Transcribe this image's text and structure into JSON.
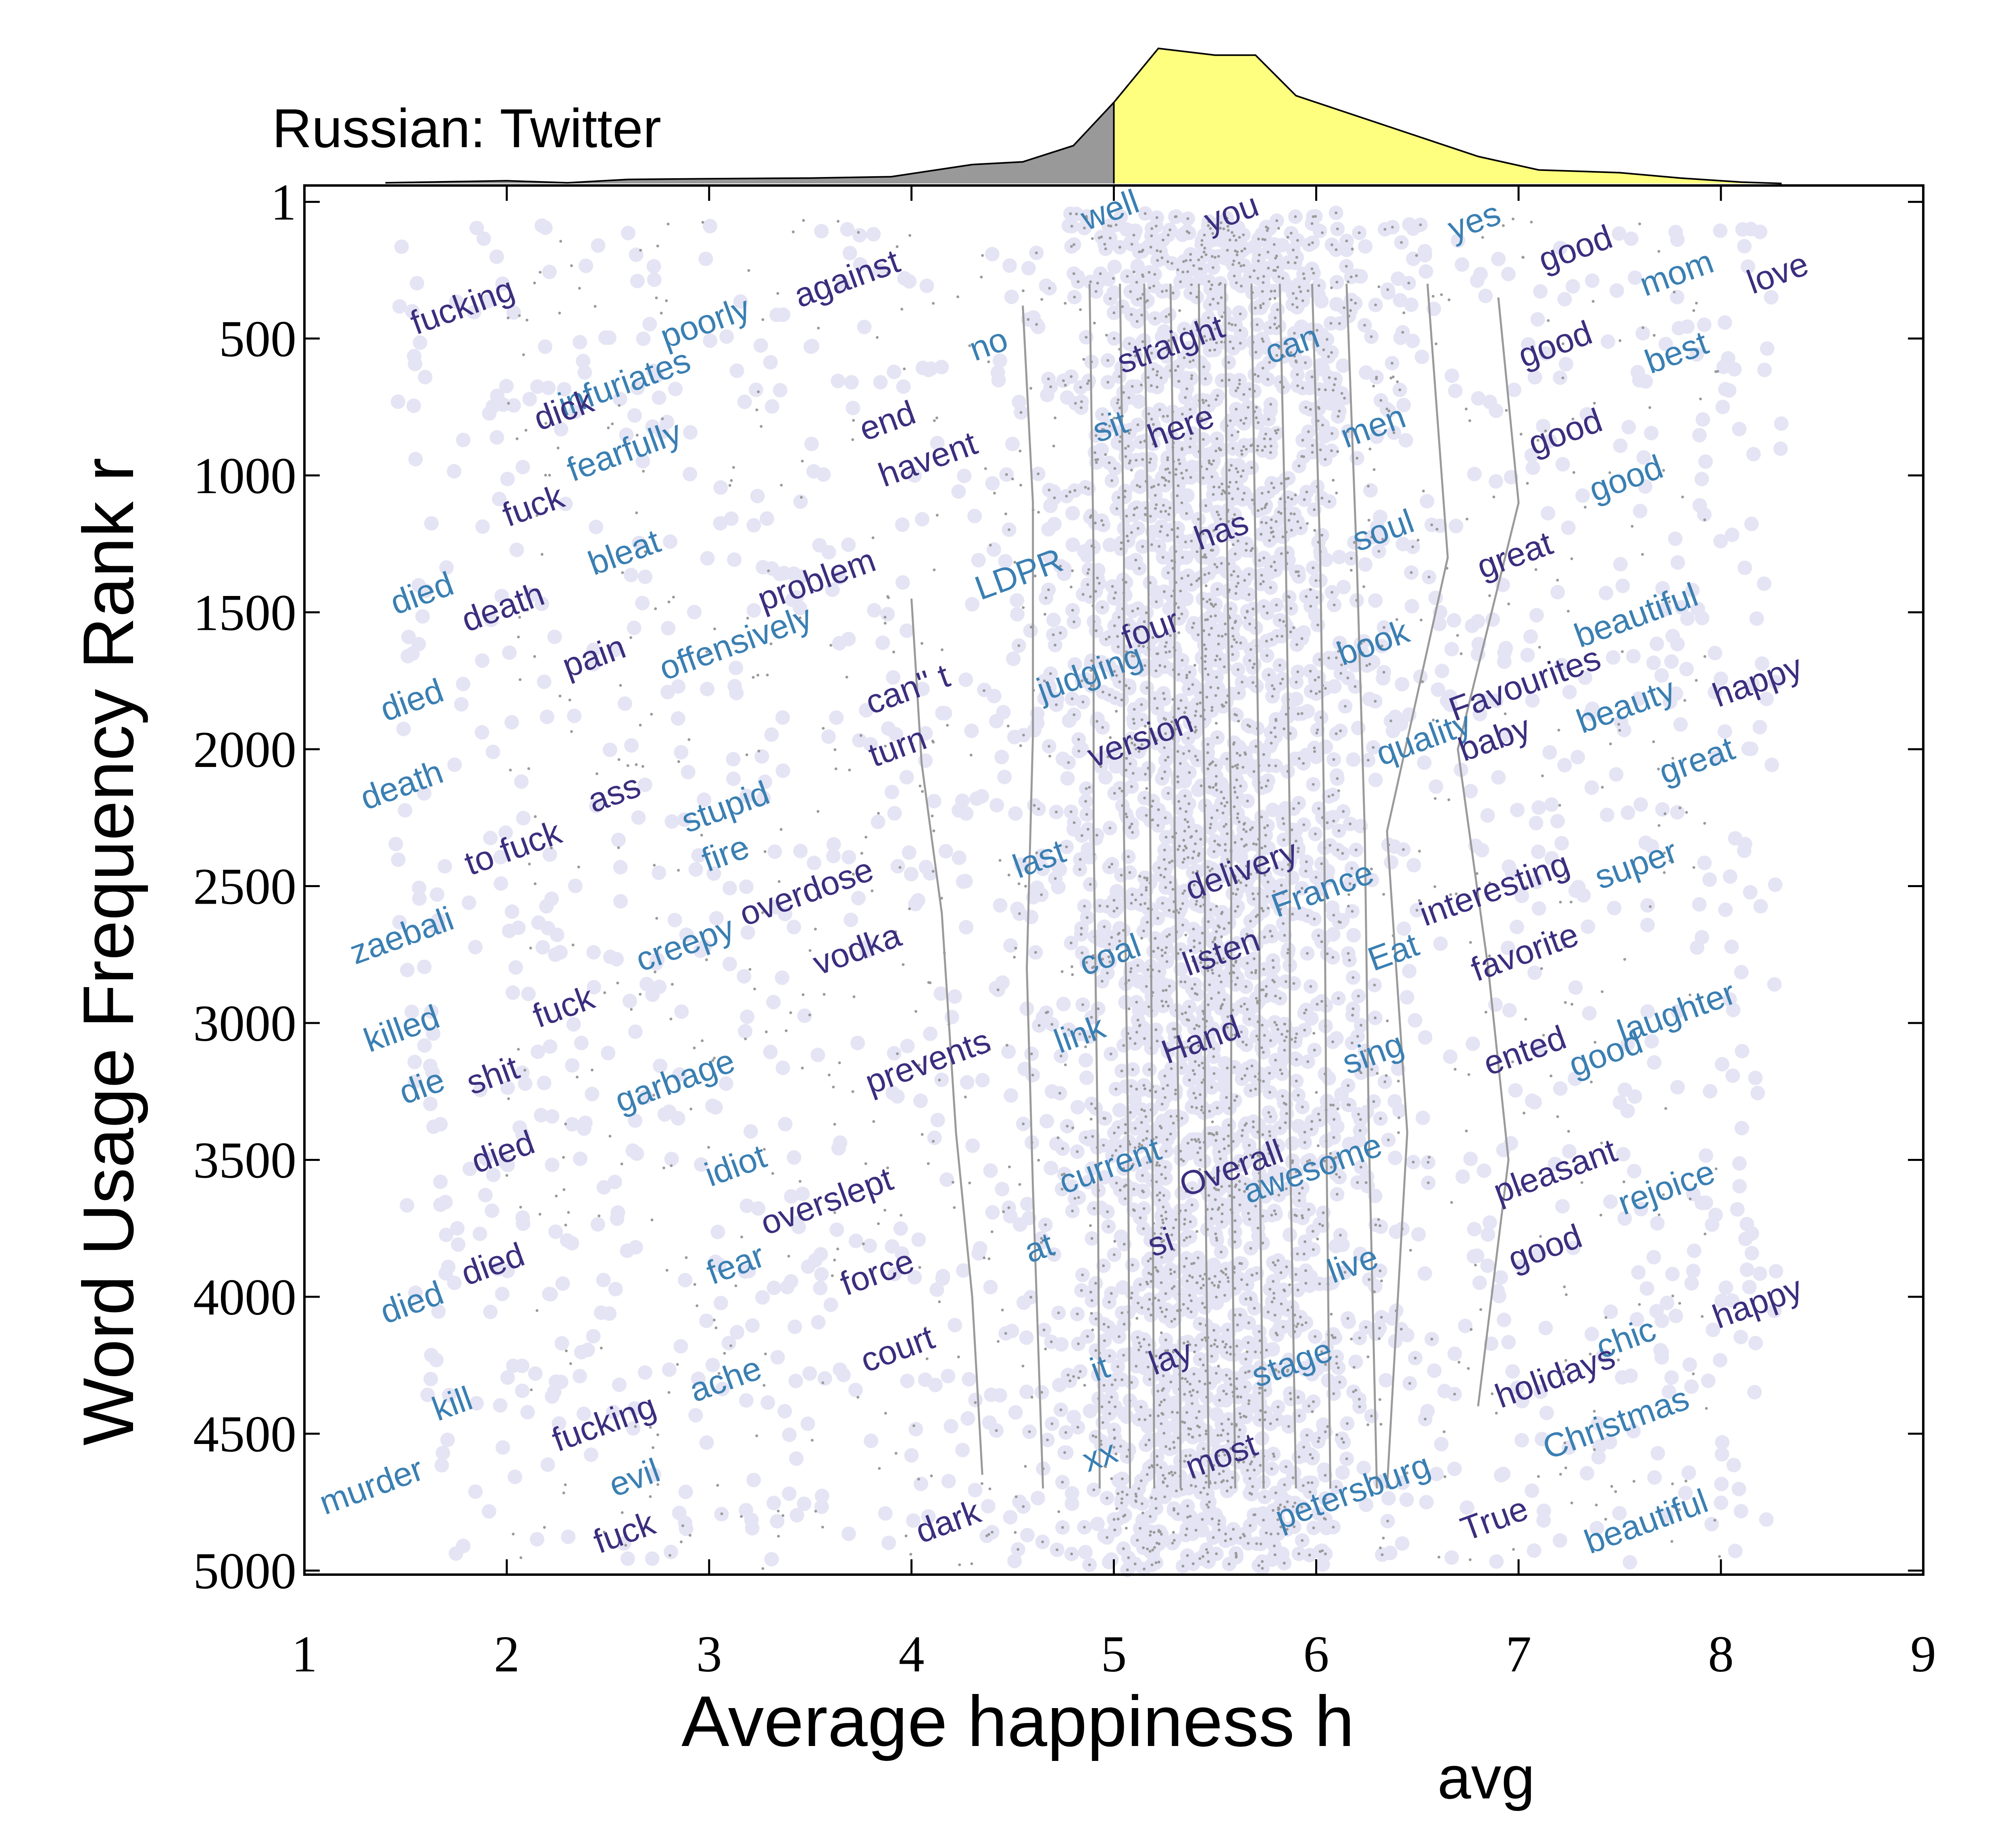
{
  "chart_data": {
    "type": "scatter",
    "title": "Russian: Twitter",
    "xlabel_main": "Average happiness h",
    "xlabel_sub": "avg",
    "ylabel": "Word Usage Frequency Rank r",
    "xlim": [
      1,
      9
    ],
    "ylim": [
      0,
      5000
    ],
    "y_inverted": true,
    "grid": false,
    "x_ticks": [
      1,
      2,
      3,
      4,
      5,
      6,
      7,
      8,
      9
    ],
    "y_ticks": [
      1,
      500,
      1000,
      1500,
      2000,
      2500,
      3000,
      3500,
      4000,
      4500,
      5000
    ],
    "colors": {
      "dark_word": "#3b2e7e",
      "light_word": "#3a7fb2",
      "scatter_halo": "#e4e4f4",
      "scatter_dot": "#9a9a9a",
      "contour": "#9a9a9a",
      "hist_below": "#999999",
      "hist_above": "#ffff7f",
      "axis": "#000000"
    },
    "distribution": {
      "split_at": 5.0,
      "x": [
        1.4,
        2.0,
        2.3,
        2.6,
        3.0,
        3.5,
        3.9,
        4.3,
        4.55,
        4.8,
        5.0,
        5.22,
        5.5,
        5.7,
        5.9,
        6.2,
        6.5,
        6.8,
        7.1,
        7.5,
        7.8,
        8.1,
        8.3
      ],
      "y": [
        0.005,
        0.02,
        0.005,
        0.03,
        0.035,
        0.04,
        0.05,
        0.14,
        0.16,
        0.28,
        0.6,
        1.0,
        0.95,
        0.95,
        0.65,
        0.5,
        0.35,
        0.2,
        0.1,
        0.08,
        0.04,
        0.01,
        0.0
      ]
    },
    "contours": [
      {
        "h": [
          4.0,
          4.05,
          4.15,
          4.22,
          4.3,
          4.35
        ],
        "r": [
          1450,
          2050,
          2600,
          3400,
          4000,
          4650
        ]
      },
      {
        "h": [
          4.55,
          4.6,
          4.6,
          4.57,
          4.6,
          4.65
        ],
        "r": [
          380,
          1100,
          1950,
          2800,
          3600,
          4700
        ]
      },
      {
        "h": [
          4.88,
          4.9,
          4.9,
          4.92,
          4.93
        ],
        "r": [
          300,
          1300,
          2300,
          3400,
          4700
        ]
      },
      {
        "h": [
          5.03,
          5.05,
          5.05,
          5.07,
          5.08
        ],
        "r": [
          300,
          1300,
          2300,
          3400,
          4700
        ]
      },
      {
        "h": [
          5.15,
          5.17,
          5.18,
          5.19,
          5.2
        ],
        "r": [
          300,
          1300,
          2300,
          3400,
          4700
        ]
      },
      {
        "h": [
          5.28,
          5.3,
          5.3,
          5.32,
          5.33
        ],
        "r": [
          300,
          1300,
          2300,
          3400,
          4700
        ]
      },
      {
        "h": [
          5.42,
          5.43,
          5.45,
          5.45,
          5.47
        ],
        "r": [
          300,
          1300,
          2300,
          3400,
          4700
        ]
      },
      {
        "h": [
          5.55,
          5.56,
          5.58,
          5.58,
          5.6
        ],
        "r": [
          300,
          1300,
          2300,
          3400,
          4700
        ]
      },
      {
        "h": [
          5.68,
          5.7,
          5.72,
          5.72,
          5.74
        ],
        "r": [
          300,
          1300,
          2300,
          3400,
          4700
        ]
      },
      {
        "h": [
          5.82,
          5.85,
          5.87,
          5.87,
          5.9
        ],
        "r": [
          300,
          1300,
          2300,
          3400,
          4700
        ]
      },
      {
        "h": [
          5.98,
          6.02,
          6.04,
          6.05,
          6.07
        ],
        "r": [
          300,
          1300,
          2300,
          3400,
          4700
        ]
      },
      {
        "h": [
          6.15,
          6.2,
          6.24,
          6.26,
          6.3
        ],
        "r": [
          300,
          1300,
          2300,
          3400,
          4700
        ]
      },
      {
        "h": [
          6.55,
          6.65,
          6.35,
          6.45,
          6.35
        ],
        "r": [
          300,
          1300,
          2300,
          3400,
          4700
        ]
      },
      {
        "h": [
          6.9,
          7.0,
          6.7,
          6.85,
          6.95,
          6.8
        ],
        "r": [
          350,
          1100,
          2000,
          2800,
          3500,
          4400
        ]
      }
    ],
    "words": [
      {
        "w": "fucking",
        "h": 1.8,
        "r": 420,
        "s": "d"
      },
      {
        "w": "poorly",
        "h": 3.0,
        "r": 480,
        "s": "l"
      },
      {
        "w": "against",
        "h": 3.7,
        "r": 320,
        "s": "d"
      },
      {
        "w": "well",
        "h": 5.0,
        "r": 70,
        "s": "l"
      },
      {
        "w": "you",
        "h": 5.6,
        "r": 80,
        "s": "d"
      },
      {
        "w": "yes",
        "h": 6.8,
        "r": 110,
        "s": "l"
      },
      {
        "w": "good",
        "h": 7.3,
        "r": 210,
        "s": "d"
      },
      {
        "w": "mom",
        "h": 7.8,
        "r": 300,
        "s": "l"
      },
      {
        "w": "love",
        "h": 8.3,
        "r": 300,
        "s": "d"
      },
      {
        "w": "infuriates",
        "h": 2.6,
        "r": 700,
        "s": "l"
      },
      {
        "w": "no",
        "h": 4.4,
        "r": 560,
        "s": "l"
      },
      {
        "w": "straight",
        "h": 5.3,
        "r": 560,
        "s": "d"
      },
      {
        "w": "can",
        "h": 5.9,
        "r": 560,
        "s": "l"
      },
      {
        "w": "good",
        "h": 7.2,
        "r": 560,
        "s": "d"
      },
      {
        "w": "best",
        "h": 7.8,
        "r": 590,
        "s": "l"
      },
      {
        "w": "dick",
        "h": 2.3,
        "r": 800,
        "s": "d"
      },
      {
        "w": "fearfully",
        "h": 2.6,
        "r": 950,
        "s": "l"
      },
      {
        "w": "end",
        "h": 3.9,
        "r": 840,
        "s": "d"
      },
      {
        "w": "havent",
        "h": 4.1,
        "r": 980,
        "s": "d"
      },
      {
        "w": "sit",
        "h": 5.0,
        "r": 860,
        "s": "l"
      },
      {
        "w": "here",
        "h": 5.35,
        "r": 860,
        "s": "d"
      },
      {
        "w": "men",
        "h": 6.3,
        "r": 860,
        "s": "l"
      },
      {
        "w": "good",
        "h": 7.25,
        "r": 880,
        "s": "d"
      },
      {
        "w": "good",
        "h": 7.55,
        "r": 1050,
        "s": "l"
      },
      {
        "w": "fuck",
        "h": 2.15,
        "r": 1150,
        "s": "d"
      },
      {
        "w": "bleat",
        "h": 2.6,
        "r": 1320,
        "s": "l"
      },
      {
        "w": "LDPR",
        "h": 4.55,
        "r": 1400,
        "s": "l"
      },
      {
        "w": "has",
        "h": 5.55,
        "r": 1240,
        "s": "d"
      },
      {
        "w": "soul",
        "h": 6.35,
        "r": 1240,
        "s": "l"
      },
      {
        "w": "great",
        "h": 7.0,
        "r": 1330,
        "s": "d"
      },
      {
        "w": "died",
        "h": 1.6,
        "r": 1470,
        "s": "l"
      },
      {
        "w": "death",
        "h": 2.0,
        "r": 1520,
        "s": "d"
      },
      {
        "w": "problem",
        "h": 3.55,
        "r": 1420,
        "s": "d"
      },
      {
        "w": "pain",
        "h": 2.45,
        "r": 1700,
        "s": "d"
      },
      {
        "w": "offensively",
        "h": 3.15,
        "r": 1650,
        "s": "l"
      },
      {
        "w": "four",
        "h": 5.2,
        "r": 1600,
        "s": "d"
      },
      {
        "w": "book",
        "h": 6.3,
        "r": 1650,
        "s": "l"
      },
      {
        "w": "beautiful",
        "h": 7.6,
        "r": 1550,
        "s": "l"
      },
      {
        "w": "died",
        "h": 1.55,
        "r": 1860,
        "s": "l"
      },
      {
        "w": "can'' t",
        "h": 4.0,
        "r": 1820,
        "s": "d"
      },
      {
        "w": "judging",
        "h": 4.9,
        "r": 1760,
        "s": "l"
      },
      {
        "w": "Favourites",
        "h": 7.05,
        "r": 1800,
        "s": "d"
      },
      {
        "w": "beauty",
        "h": 7.55,
        "r": 1880,
        "s": "l"
      },
      {
        "w": "happy",
        "h": 8.2,
        "r": 1790,
        "s": "d"
      },
      {
        "w": "turn",
        "h": 3.95,
        "r": 2030,
        "s": "d"
      },
      {
        "w": "version",
        "h": 5.15,
        "r": 2000,
        "s": "d"
      },
      {
        "w": "quality",
        "h": 6.55,
        "r": 2000,
        "s": "l"
      },
      {
        "w": "baby",
        "h": 6.9,
        "r": 2000,
        "s": "d"
      },
      {
        "w": "great",
        "h": 7.9,
        "r": 2080,
        "s": "l"
      },
      {
        "w": "death",
        "h": 1.5,
        "r": 2170,
        "s": "l"
      },
      {
        "w": "ass",
        "h": 2.55,
        "r": 2200,
        "s": "d"
      },
      {
        "w": "stupid",
        "h": 3.1,
        "r": 2250,
        "s": "l"
      },
      {
        "w": "to fuck",
        "h": 2.05,
        "r": 2400,
        "s": "d"
      },
      {
        "w": "fire",
        "h": 3.1,
        "r": 2420,
        "s": "l"
      },
      {
        "w": "overdose",
        "h": 3.5,
        "r": 2560,
        "s": "d"
      },
      {
        "w": "last",
        "h": 4.65,
        "r": 2440,
        "s": "l"
      },
      {
        "w": "delivery",
        "h": 5.65,
        "r": 2480,
        "s": "d"
      },
      {
        "w": "France",
        "h": 6.05,
        "r": 2550,
        "s": "l"
      },
      {
        "w": "interesting",
        "h": 6.9,
        "r": 2550,
        "s": "d"
      },
      {
        "w": "super",
        "h": 7.6,
        "r": 2460,
        "s": "l"
      },
      {
        "w": "zaebali",
        "h": 1.5,
        "r": 2720,
        "s": "l"
      },
      {
        "w": "creepy",
        "h": 2.9,
        "r": 2750,
        "s": "l"
      },
      {
        "w": "vodka",
        "h": 3.75,
        "r": 2770,
        "s": "d"
      },
      {
        "w": "coal",
        "h": 5.0,
        "r": 2790,
        "s": "l"
      },
      {
        "w": "listen",
        "h": 5.55,
        "r": 2780,
        "s": "d"
      },
      {
        "w": "Eat",
        "h": 6.4,
        "r": 2780,
        "s": "l"
      },
      {
        "w": "favorite",
        "h": 7.05,
        "r": 2780,
        "s": "d"
      },
      {
        "w": "killed",
        "h": 1.5,
        "r": 3060,
        "s": "l"
      },
      {
        "w": "fuck",
        "h": 2.3,
        "r": 2980,
        "s": "d"
      },
      {
        "w": "laughter",
        "h": 7.8,
        "r": 3000,
        "s": "l"
      },
      {
        "w": "prevents",
        "h": 4.1,
        "r": 3180,
        "s": "d"
      },
      {
        "w": "link",
        "h": 4.85,
        "r": 3080,
        "s": "l"
      },
      {
        "w": "Hand",
        "h": 5.45,
        "r": 3100,
        "s": "d"
      },
      {
        "w": "ented",
        "h": 7.05,
        "r": 3140,
        "s": "d"
      },
      {
        "w": "good",
        "h": 7.45,
        "r": 3150,
        "s": "l"
      },
      {
        "w": "garbage",
        "h": 2.85,
        "r": 3250,
        "s": "l"
      },
      {
        "w": "sing",
        "h": 6.3,
        "r": 3150,
        "s": "l"
      },
      {
        "w": "die",
        "h": 1.6,
        "r": 3270,
        "s": "l"
      },
      {
        "w": "shit",
        "h": 1.95,
        "r": 3230,
        "s": "d"
      },
      {
        "w": "died",
        "h": 2.0,
        "r": 3510,
        "s": "d"
      },
      {
        "w": "idiot",
        "h": 3.15,
        "r": 3560,
        "s": "l"
      },
      {
        "w": "overslept",
        "h": 3.6,
        "r": 3690,
        "s": "d"
      },
      {
        "w": "current",
        "h": 5.0,
        "r": 3560,
        "s": "l"
      },
      {
        "w": "Overall",
        "h": 5.6,
        "r": 3570,
        "s": "d"
      },
      {
        "w": "awesome",
        "h": 6.0,
        "r": 3570,
        "s": "l"
      },
      {
        "w": "pleasant",
        "h": 7.2,
        "r": 3580,
        "s": "d"
      },
      {
        "w": "rejoice",
        "h": 7.75,
        "r": 3640,
        "s": "l"
      },
      {
        "w": "fear",
        "h": 3.15,
        "r": 3920,
        "s": "l"
      },
      {
        "w": "force",
        "h": 3.85,
        "r": 3950,
        "s": "d"
      },
      {
        "w": "at",
        "h": 4.65,
        "r": 3860,
        "s": "l"
      },
      {
        "w": "si",
        "h": 5.25,
        "r": 3840,
        "s": "d"
      },
      {
        "w": "live",
        "h": 6.2,
        "r": 3920,
        "s": "l"
      },
      {
        "w": "good",
        "h": 7.15,
        "r": 3860,
        "s": "d"
      },
      {
        "w": "died",
        "h": 1.55,
        "r": 4060,
        "s": "l"
      },
      {
        "w": "died",
        "h": 1.95,
        "r": 3920,
        "s": "d"
      },
      {
        "w": "happy",
        "h": 8.2,
        "r": 4060,
        "s": "d"
      },
      {
        "w": "court",
        "h": 3.95,
        "r": 4230,
        "s": "d"
      },
      {
        "w": "chic",
        "h": 7.55,
        "r": 4190,
        "s": "l"
      },
      {
        "w": "it",
        "h": 4.95,
        "r": 4300,
        "s": "l"
      },
      {
        "w": "lay",
        "h": 5.3,
        "r": 4260,
        "s": "d"
      },
      {
        "w": "stage",
        "h": 5.9,
        "r": 4280,
        "s": "l"
      },
      {
        "w": "holidays",
        "h": 7.2,
        "r": 4330,
        "s": "d"
      },
      {
        "w": "ache",
        "h": 3.1,
        "r": 4340,
        "s": "l"
      },
      {
        "w": "Christmas",
        "h": 7.5,
        "r": 4500,
        "s": "l"
      },
      {
        "w": "kill",
        "h": 1.75,
        "r": 4430,
        "s": "l"
      },
      {
        "w": "fucking",
        "h": 2.5,
        "r": 4500,
        "s": "d"
      },
      {
        "w": "evil",
        "h": 2.65,
        "r": 4700,
        "s": "l"
      },
      {
        "w": "murder",
        "h": 1.35,
        "r": 4730,
        "s": "l"
      },
      {
        "w": "xx",
        "h": 4.95,
        "r": 4620,
        "s": "l"
      },
      {
        "w": "most",
        "h": 5.55,
        "r": 4620,
        "s": "d"
      },
      {
        "w": "petersburg",
        "h": 6.2,
        "r": 4750,
        "s": "l"
      },
      {
        "w": "fuck",
        "h": 2.6,
        "r": 4900,
        "s": "d"
      },
      {
        "w": "dark",
        "h": 4.2,
        "r": 4860,
        "s": "d"
      },
      {
        "w": "True",
        "h": 6.9,
        "r": 4850,
        "s": "d"
      },
      {
        "w": "beautiful",
        "h": 7.65,
        "r": 4860,
        "s": "l"
      }
    ]
  }
}
